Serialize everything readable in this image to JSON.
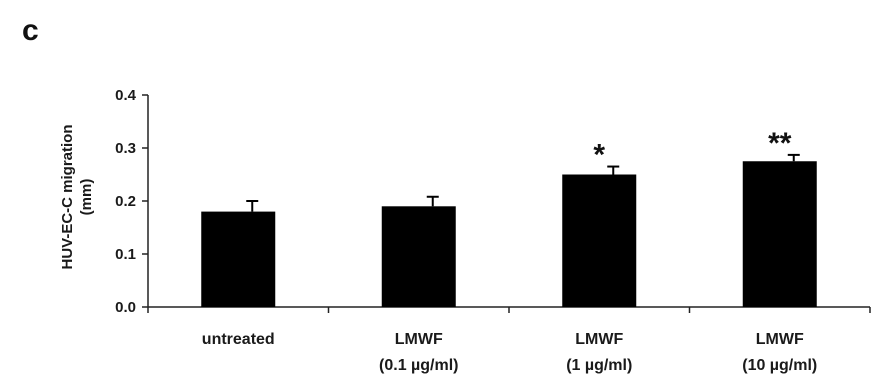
{
  "panel_label": "c",
  "chart_data": {
    "type": "bar",
    "ylabel_lines": [
      "HUV-EC-C migration",
      "(mm)"
    ],
    "ylim": [
      0,
      0.4
    ],
    "yticks": [
      "0.0",
      "0.1",
      "0.2",
      "0.3",
      "0.4"
    ],
    "ytick_values": [
      0,
      0.1,
      0.2,
      0.3,
      0.4
    ],
    "categories": [
      {
        "line1": "untreated",
        "line2": ""
      },
      {
        "line1": "LMWF",
        "line2": "(0.1 µg/ml)"
      },
      {
        "line1": "LMWF",
        "line2": "(1 µg/ml)"
      },
      {
        "line1": "LMWF",
        "line2": "(10 µg/ml)"
      }
    ],
    "values": [
      0.18,
      0.19,
      0.25,
      0.275
    ],
    "errors": [
      0.02,
      0.018,
      0.015,
      0.012
    ],
    "significance": [
      "",
      "",
      "*",
      "**"
    ],
    "bar_color": "#000000",
    "grid": false
  }
}
